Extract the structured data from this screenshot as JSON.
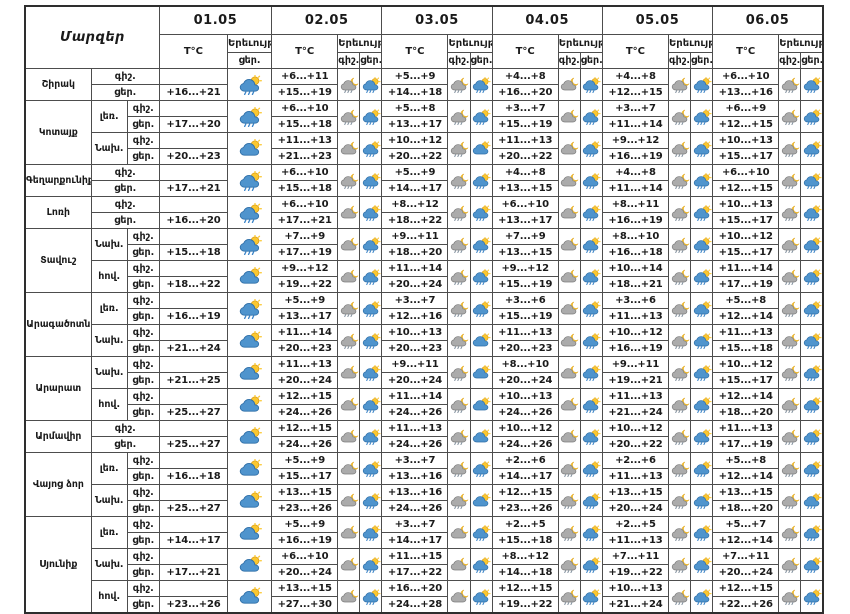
{
  "header": {
    "regions_label": "Մարզեր",
    "temp_label": "T°C",
    "phenomenon_label": "Երեւույթ",
    "night_label": "գիշ.",
    "day_label": "ցեր.",
    "dates": [
      "01.05",
      "02.05",
      "03.05",
      "04.05",
      "05.05",
      "06.05"
    ]
  },
  "icon_types": {
    "dr": "sun-cloud-rain-icon",
    "dc": "sun-cloud-icon",
    "nr": "moon-cloud-rain-icon",
    "nc": "moon-cloud-icon"
  },
  "colors": {
    "border": "#4d4d4d",
    "text": "#1a1a1a",
    "cloud_day": "#4f94cd",
    "cloud_day_edge": "#2f6fa8",
    "cloud_night": "#ababab",
    "cloud_night_edge": "#7d7d7d",
    "sun": "#fbc72f",
    "sun_edge": "#d99b14",
    "rain_day": "#3d85c8",
    "rain_night": "#8593a0"
  },
  "regions": [
    {
      "name": "Շիրակ",
      "zones": [
        {
          "label": "",
          "night": [
            "",
            "+6...+11",
            "+5...+9",
            "+4...+8",
            "+4...+8",
            "+6...+10"
          ],
          "day": [
            "+16...+21",
            "+15...+19",
            "+14...+18",
            "+16...+20",
            "+12...+15",
            "+13...+16"
          ],
          "icons": [
            "dr",
            "nr",
            "dr",
            "nr",
            "dr",
            "nc",
            "dr",
            "nr",
            "dr",
            "nr",
            "dr"
          ]
        }
      ]
    },
    {
      "name": "Կոտայք",
      "zones": [
        {
          "label": "լեռ.",
          "night": [
            "",
            "+6...+10",
            "+5...+8",
            "+3...+7",
            "+3...+7",
            "+6...+9"
          ],
          "day": [
            "+17...+20",
            "+15...+18",
            "+13...+17",
            "+15...+19",
            "+11...+14",
            "+12...+15"
          ],
          "icons": [
            "dr",
            "nr",
            "dr",
            "nr",
            "dr",
            "nc",
            "dr",
            "nr",
            "dr",
            "nr",
            "dr"
          ]
        },
        {
          "label": "Նախ.",
          "night": [
            "",
            "+11...+13",
            "+10...+12",
            "+11...+13",
            "+9...+12",
            "+10...+13"
          ],
          "day": [
            "+20...+23",
            "+21...+23",
            "+20...+22",
            "+20...+22",
            "+16...+19",
            "+15...+17"
          ],
          "icons": [
            "dc",
            "nc",
            "dr",
            "nr",
            "dc",
            "nc",
            "dr",
            "nr",
            "dr",
            "nr",
            "dr"
          ]
        }
      ]
    },
    {
      "name": "Գեղարքունիք",
      "zones": [
        {
          "label": "",
          "night": [
            "",
            "+6...+10",
            "+5...+9",
            "+4...+8",
            "+4...+8",
            "+6...+10"
          ],
          "day": [
            "+17...+21",
            "+15...+18",
            "+14...+17",
            "+13...+15",
            "+11...+14",
            "+12...+15"
          ],
          "icons": [
            "dr",
            "nr",
            "dr",
            "nr",
            "dr",
            "nc",
            "dr",
            "nr",
            "dr",
            "nr",
            "dr"
          ]
        }
      ]
    },
    {
      "name": "Լոռի",
      "zones": [
        {
          "label": "",
          "night": [
            "",
            "+6...+10",
            "+8...+12",
            "+6...+10",
            "+8...+11",
            "+10...+13"
          ],
          "day": [
            "+16...+20",
            "+17...+21",
            "+18...+22",
            "+13...+17",
            "+16...+19",
            "+15...+17"
          ],
          "icons": [
            "dr",
            "nc",
            "dr",
            "nr",
            "dr",
            "nc",
            "dr",
            "nr",
            "dr",
            "nr",
            "dr"
          ]
        }
      ]
    },
    {
      "name": "Տավուշ",
      "zones": [
        {
          "label": "Նախ.",
          "night": [
            "",
            "+7...+9",
            "+9...+11",
            "+7...+9",
            "+8...+10",
            "+10...+12"
          ],
          "day": [
            "+15...+18",
            "+17...+19",
            "+18...+20",
            "+13...+15",
            "+16...+18",
            "+15...+17"
          ],
          "icons": [
            "dr",
            "nc",
            "dr",
            "nr",
            "dr",
            "nc",
            "dr",
            "nr",
            "dr",
            "nr",
            "dr"
          ]
        },
        {
          "label": "հով.",
          "night": [
            "",
            "+9...+12",
            "+11...+14",
            "+9...+12",
            "+10...+14",
            "+11...+14"
          ],
          "day": [
            "+18...+22",
            "+19...+22",
            "+20...+24",
            "+15...+19",
            "+18...+21",
            "+17...+19"
          ],
          "icons": [
            "dc",
            "nc",
            "dr",
            "nr",
            "dr",
            "nc",
            "dr",
            "nr",
            "dr",
            "nr",
            "dr"
          ]
        }
      ]
    },
    {
      "name": "Արագածոտն",
      "zones": [
        {
          "label": "լեռ.",
          "night": [
            "",
            "+5...+9",
            "+3...+7",
            "+3...+6",
            "+3...+6",
            "+5...+8"
          ],
          "day": [
            "+16...+19",
            "+13...+17",
            "+12...+16",
            "+15...+19",
            "+11...+13",
            "+12...+14"
          ],
          "icons": [
            "dr",
            "nr",
            "dr",
            "nr",
            "dr",
            "nc",
            "dr",
            "nr",
            "dr",
            "nr",
            "dr"
          ]
        },
        {
          "label": "Նախ.",
          "night": [
            "",
            "+11...+14",
            "+10...+13",
            "+11...+13",
            "+10...+12",
            "+11...+13"
          ],
          "day": [
            "+21...+24",
            "+20...+23",
            "+20...+23",
            "+20...+23",
            "+16...+19",
            "+15...+18"
          ],
          "icons": [
            "dc",
            "nr",
            "dr",
            "nr",
            "dc",
            "nc",
            "dr",
            "nr",
            "dr",
            "nr",
            "dr"
          ]
        }
      ]
    },
    {
      "name": "Արարատ",
      "zones": [
        {
          "label": "Նախ.",
          "night": [
            "",
            "+11...+13",
            "+9...+11",
            "+8...+10",
            "+9...+11",
            "+10...+12"
          ],
          "day": [
            "+21...+25",
            "+20...+24",
            "+20...+24",
            "+20...+24",
            "+19...+21",
            "+15...+17"
          ],
          "icons": [
            "dc",
            "nc",
            "dr",
            "nr",
            "dc",
            "nc",
            "dr",
            "nr",
            "dr",
            "nr",
            "dr"
          ]
        },
        {
          "label": "հով.",
          "night": [
            "",
            "+12...+15",
            "+11...+14",
            "+10...+13",
            "+11...+13",
            "+12...+14"
          ],
          "day": [
            "+25...+27",
            "+24...+26",
            "+24...+26",
            "+24...+26",
            "+21...+24",
            "+18...+20"
          ],
          "icons": [
            "dc",
            "nc",
            "dr",
            "nr",
            "dc",
            "nc",
            "dr",
            "nr",
            "dr",
            "nr",
            "dr"
          ]
        }
      ]
    },
    {
      "name": "Արմավիր",
      "zones": [
        {
          "label": "",
          "night": [
            "",
            "+12...+15",
            "+11...+13",
            "+10...+12",
            "+10...+12",
            "+11...+13"
          ],
          "day": [
            "+25...+27",
            "+24...+26",
            "+24...+26",
            "+24...+26",
            "+20...+22",
            "+17...+19"
          ],
          "icons": [
            "dc",
            "nc",
            "dr",
            "nr",
            "dc",
            "nc",
            "dr",
            "nr",
            "dr",
            "nr",
            "dr"
          ]
        }
      ]
    },
    {
      "name": "Վայոց ձոր",
      "zones": [
        {
          "label": "լեռ.",
          "night": [
            "",
            "+5...+9",
            "+3...+7",
            "+2...+6",
            "+2...+6",
            "+5...+8"
          ],
          "day": [
            "+16...+18",
            "+15...+17",
            "+13...+16",
            "+14...+17",
            "+11...+13",
            "+12...+14"
          ],
          "icons": [
            "dc",
            "nc",
            "dr",
            "nr",
            "dr",
            "nr",
            "dr",
            "nr",
            "dr",
            "nr",
            "dr"
          ]
        },
        {
          "label": "Նախ.",
          "night": [
            "",
            "+13...+15",
            "+13...+16",
            "+12...+15",
            "+13...+15",
            "+13...+15"
          ],
          "day": [
            "+25...+27",
            "+23...+26",
            "+24...+26",
            "+23...+26",
            "+20...+24",
            "+18...+20"
          ],
          "icons": [
            "dc",
            "nc",
            "dr",
            "nr",
            "dc",
            "nr",
            "dr",
            "nr",
            "dr",
            "nr",
            "dr"
          ]
        }
      ]
    },
    {
      "name": "Սյունիք",
      "zones": [
        {
          "label": "լեռ.",
          "night": [
            "",
            "+5...+9",
            "+3...+7",
            "+2...+5",
            "+2...+5",
            "+5...+7"
          ],
          "day": [
            "+14...+17",
            "+16...+19",
            "+14...+17",
            "+15...+18",
            "+11...+13",
            "+12...+14"
          ],
          "icons": [
            "dc",
            "nc",
            "dr",
            "nc",
            "dr",
            "nr",
            "dr",
            "nr",
            "dr",
            "nr",
            "dr"
          ]
        },
        {
          "label": "Նախ.",
          "night": [
            "",
            "+6...+10",
            "+11...+15",
            "+8...+12",
            "+7...+11",
            "+7...+11"
          ],
          "day": [
            "+17...+21",
            "+20...+24",
            "+17...+22",
            "+14...+18",
            "+19...+22",
            "+20...+24"
          ],
          "icons": [
            "dc",
            "nc",
            "dr",
            "nc",
            "dr",
            "nr",
            "dr",
            "nr",
            "dr",
            "nr",
            "dr"
          ]
        },
        {
          "label": "հով.",
          "night": [
            "",
            "+13...+15",
            "+16...+20",
            "+12...+15",
            "+10...+13",
            "+12...+15"
          ],
          "day": [
            "+23...+26",
            "+27...+30",
            "+24...+28",
            "+19...+22",
            "+21...+24",
            "+22...+26"
          ],
          "icons": [
            "dc",
            "nc",
            "dr",
            "nc",
            "dr",
            "nr",
            "dr",
            "nr",
            "dr",
            "nr",
            "dr"
          ]
        }
      ]
    }
  ]
}
